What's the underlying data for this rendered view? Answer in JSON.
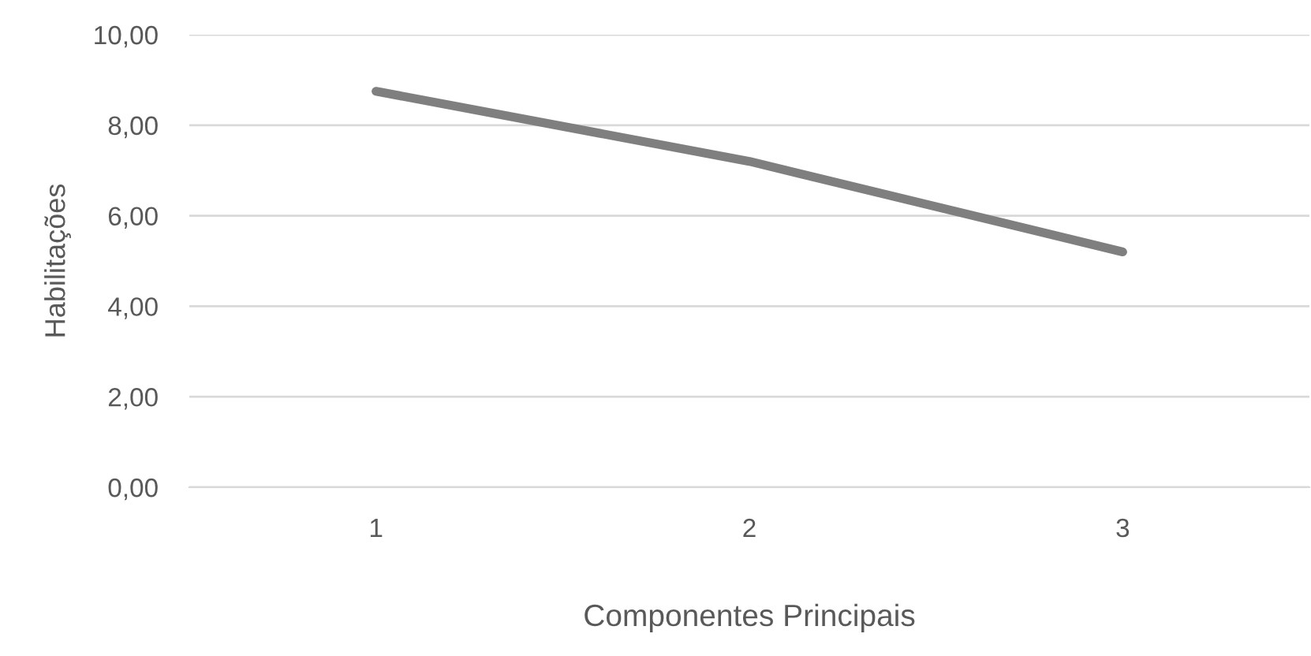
{
  "chart_data": {
    "type": "line",
    "xlabel": "Componentes Principais",
    "ylabel": "Habilitações",
    "categories": [
      "1",
      "2",
      "3"
    ],
    "series": [
      {
        "color": "#7f7f7f",
        "values": [
          8.75,
          7.2,
          5.2
        ]
      }
    ],
    "ylim": [
      0,
      10
    ],
    "yticks": [
      {
        "value": 0,
        "label": "0,00"
      },
      {
        "value": 2,
        "label": "2,00"
      },
      {
        "value": 4,
        "label": "4,00"
      },
      {
        "value": 6,
        "label": "6,00"
      },
      {
        "value": 8,
        "label": "8,00"
      },
      {
        "value": 10,
        "label": "10,00"
      }
    ],
    "grid": "y",
    "marker": "none",
    "line_style": "solid"
  }
}
